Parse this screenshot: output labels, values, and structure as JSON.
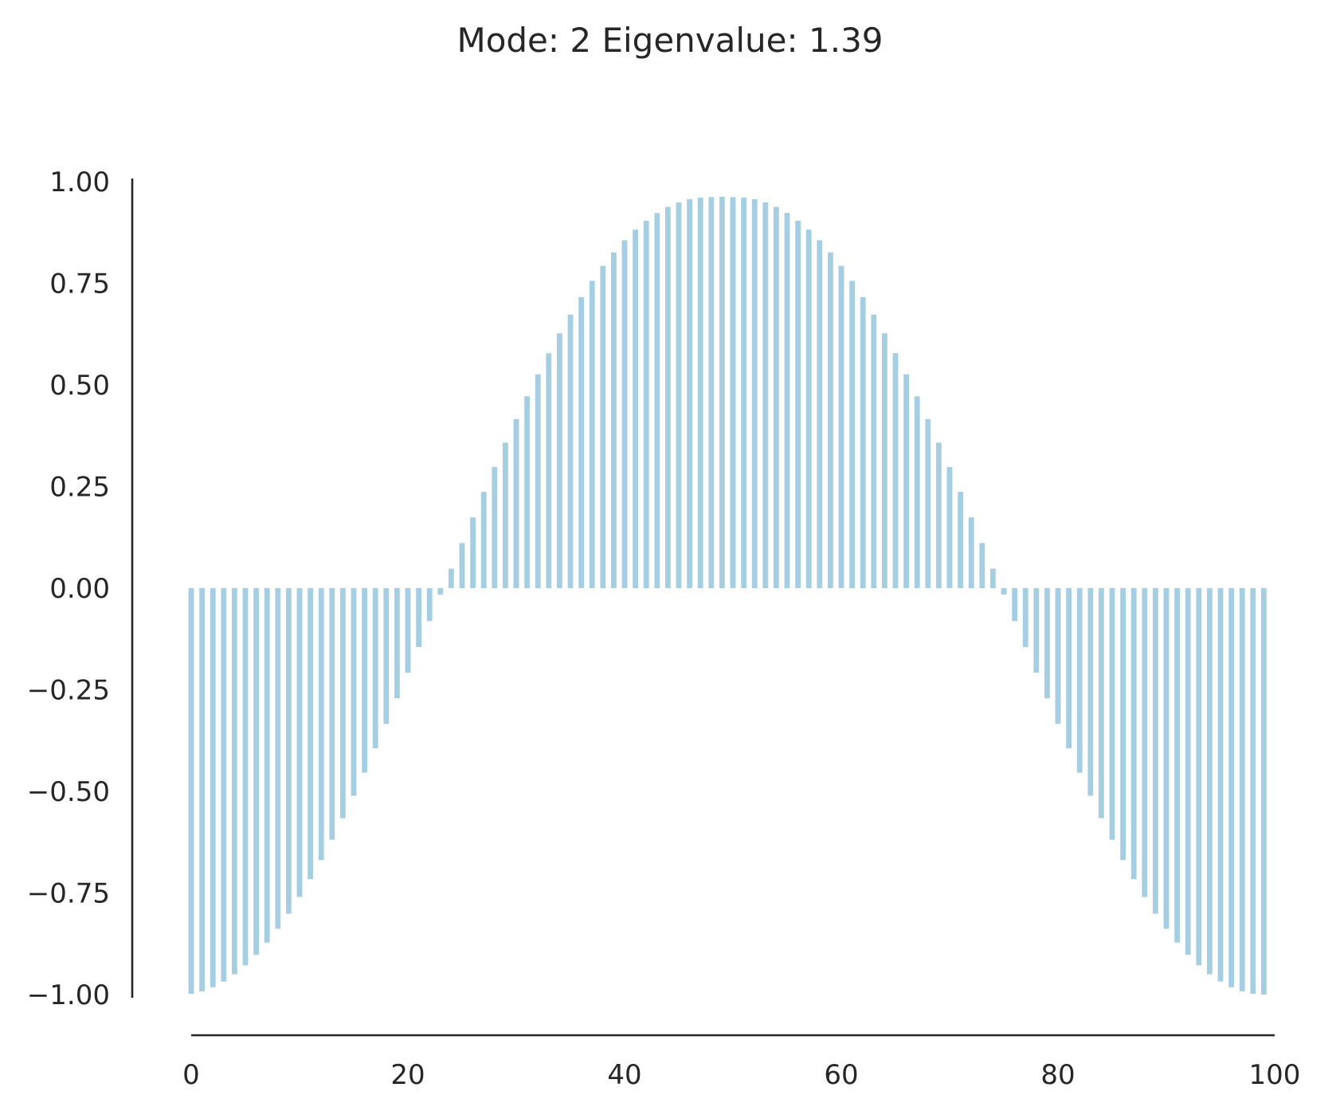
{
  "chart_data": {
    "type": "bar",
    "title": "Mode: 2  Eigenvalue: 1.39",
    "xlabel": "",
    "ylabel": "",
    "xlim": [
      0,
      100
    ],
    "ylim": [
      -1,
      1
    ],
    "x_ticks": [
      "0",
      "20",
      "40",
      "60",
      "80",
      "100"
    ],
    "y_ticks": [
      "1.00",
      "0.75",
      "0.50",
      "0.25",
      "0.00",
      "−0.25",
      "−0.50",
      "−0.75",
      "−1.00"
    ],
    "x": [
      0,
      1,
      2,
      3,
      4,
      5,
      6,
      7,
      8,
      9,
      10,
      11,
      12,
      13,
      14,
      15,
      16,
      17,
      18,
      19,
      20,
      21,
      22,
      23,
      24,
      25,
      26,
      27,
      28,
      29,
      30,
      31,
      32,
      33,
      34,
      35,
      36,
      37,
      38,
      39,
      40,
      41,
      42,
      43,
      44,
      45,
      46,
      47,
      48,
      49,
      50,
      51,
      52,
      53,
      54,
      55,
      56,
      57,
      58,
      59,
      60,
      61,
      62,
      63,
      64,
      65,
      66,
      67,
      68,
      69,
      70,
      71,
      72,
      73,
      74,
      75,
      76,
      77,
      78,
      79,
      80,
      81,
      82,
      83,
      84,
      85,
      86,
      87,
      88,
      89,
      90,
      91,
      92,
      93,
      94,
      95,
      96,
      97,
      98,
      99
    ],
    "values": [
      -0.998,
      -0.992,
      -0.982,
      -0.968,
      -0.95,
      -0.928,
      -0.902,
      -0.872,
      -0.838,
      -0.801,
      -0.76,
      -0.716,
      -0.669,
      -0.619,
      -0.566,
      -0.511,
      -0.454,
      -0.394,
      -0.334,
      -0.271,
      -0.208,
      -0.145,
      -0.081,
      -0.016,
      0.048,
      0.111,
      0.174,
      0.237,
      0.298,
      0.358,
      0.416,
      0.472,
      0.526,
      0.578,
      0.627,
      0.673,
      0.716,
      0.756,
      0.793,
      0.826,
      0.856,
      0.882,
      0.904,
      0.923,
      0.938,
      0.949,
      0.957,
      0.961,
      0.962,
      0.963,
      0.962,
      0.961,
      0.957,
      0.949,
      0.938,
      0.923,
      0.904,
      0.882,
      0.856,
      0.826,
      0.793,
      0.756,
      0.716,
      0.673,
      0.627,
      0.578,
      0.526,
      0.472,
      0.416,
      0.358,
      0.298,
      0.237,
      0.174,
      0.111,
      0.048,
      -0.016,
      -0.081,
      -0.145,
      -0.208,
      -0.271,
      -0.334,
      -0.394,
      -0.454,
      -0.511,
      -0.566,
      -0.619,
      -0.669,
      -0.716,
      -0.76,
      -0.801,
      -0.838,
      -0.872,
      -0.902,
      -0.928,
      -0.95,
      -0.968,
      -0.982,
      -0.992,
      -0.998,
      -1.0
    ],
    "bar_color": "#a6cee3",
    "grid": false
  }
}
